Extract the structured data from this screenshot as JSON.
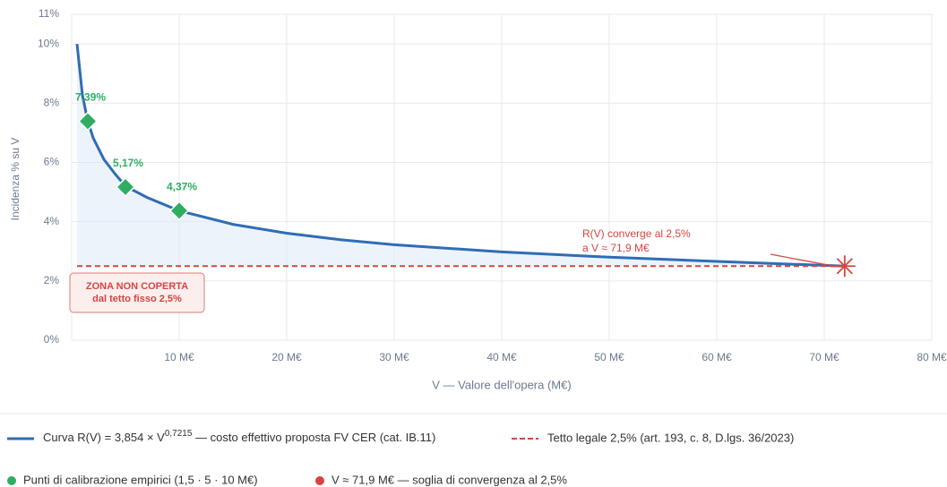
{
  "chart_data": {
    "type": "line",
    "xlabel": "V — Valore dell'opera (M€)",
    "ylabel": "Incidenza % su V",
    "xlim": [
      0,
      80
    ],
    "ylim": [
      0,
      11
    ],
    "xticks": [
      {
        "value": 10,
        "label": "10 M€"
      },
      {
        "value": 20,
        "label": "20 M€"
      },
      {
        "value": 30,
        "label": "30 M€"
      },
      {
        "value": 40,
        "label": "40 M€"
      },
      {
        "value": 50,
        "label": "50 M€"
      },
      {
        "value": 60,
        "label": "60 M€"
      },
      {
        "value": 70,
        "label": "70 M€"
      },
      {
        "value": 80,
        "label": "80 M€"
      }
    ],
    "yticks": [
      {
        "value": 0,
        "label": "0%"
      },
      {
        "value": 2,
        "label": "2%"
      },
      {
        "value": 4,
        "label": "4%"
      },
      {
        "value": 6,
        "label": "6%"
      },
      {
        "value": 8,
        "label": "8%"
      },
      {
        "value": 10,
        "label": "10%"
      },
      {
        "value": 11,
        "label": "11%"
      }
    ],
    "grid": true,
    "series": [
      {
        "name": [
          "Curva R(V) = 3,854 × V",
          "0,7215",
          " — costo effettivo proposta FV CER (cat. IB.11)"
        ],
        "color": "#2f6db5",
        "style": "solid",
        "x": [
          0.5,
          1,
          1.5,
          2,
          3,
          4,
          5,
          7,
          10,
          15,
          20,
          25,
          30,
          40,
          50,
          60,
          71.9
        ],
        "values": [
          10.0,
          8.27,
          7.39,
          6.83,
          6.1,
          5.63,
          5.2,
          4.82,
          4.37,
          3.91,
          3.61,
          3.39,
          3.22,
          2.98,
          2.8,
          2.66,
          2.5
        ]
      },
      {
        "name": "Tetto legale 2,5% (art. 193, c. 8, D.lgs. 36/2023)",
        "color": "#d64541",
        "style": "dashed",
        "x": [
          0.5,
          71.9
        ],
        "values": [
          2.5,
          2.5
        ]
      },
      {
        "name": "Punti di calibrazione empirici (1,5 · 5 · 10 M€)",
        "color": "#2fae62",
        "marker": "diamond",
        "x": [
          1.5,
          5,
          10
        ],
        "values": [
          7.39,
          5.17,
          4.37
        ],
        "value_labels": [
          "7,39%",
          "5,17%",
          "4,37%"
        ]
      },
      {
        "name": "V ≈ 71,9 M€ — soglia di convergenza al 2,5%",
        "color": "#d64541",
        "marker": "asterisk",
        "x": [
          71.9
        ],
        "values": [
          2.5
        ]
      }
    ],
    "annotations": [
      {
        "lines": [
          "R(V) converge al 2,5%",
          "a V ≈ 71,9 M€"
        ]
      },
      {
        "lines": [
          "ZONA NON COPERTA",
          "dal tetto fisso 2,5%"
        ]
      }
    ]
  }
}
